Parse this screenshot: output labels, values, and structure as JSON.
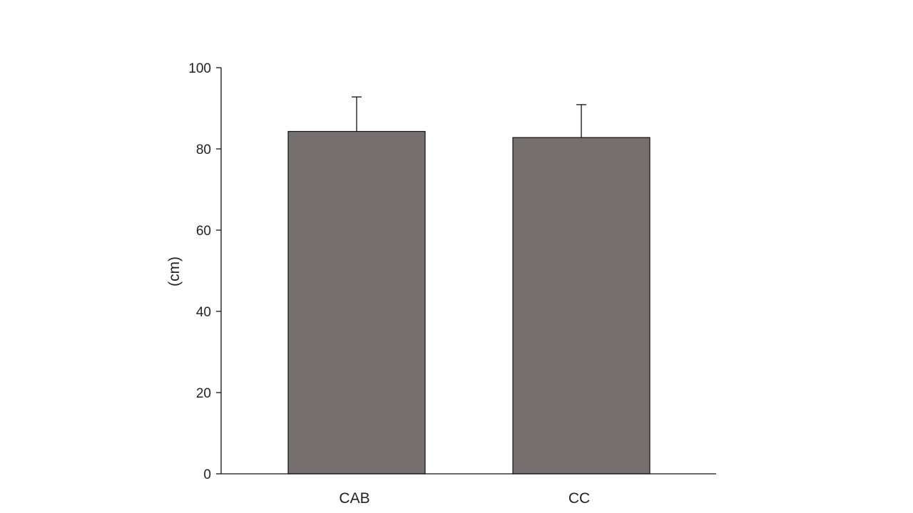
{
  "chart_data": {
    "type": "bar",
    "categories": [
      "CAB",
      "CC"
    ],
    "values": [
      84.3,
      82.8
    ],
    "error_upper": [
      92.8,
      90.9
    ],
    "title": "",
    "xlabel": "",
    "ylabel": "(cm)",
    "ylim": [
      0,
      100
    ],
    "yticks": [
      "0",
      "20",
      "40",
      "60",
      "80",
      "100"
    ],
    "grid": false,
    "legend": "none",
    "bar_color": "#766f6f",
    "edge_color": "#111111"
  }
}
